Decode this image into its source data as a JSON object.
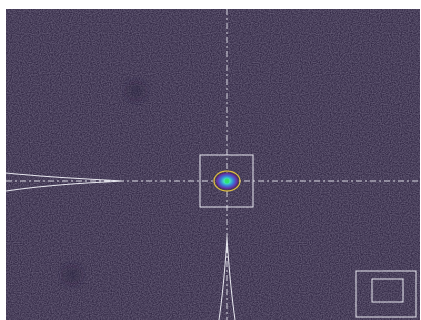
{
  "viewer": {
    "background_color": "#2d2340",
    "overlay_color": "#e8e8f0",
    "ellipse_color": "#e0c040",
    "peak_color": "#30e070",
    "crosshair": "dashed-crosshair",
    "roi": "roi-box",
    "navigator": "overview-navigator"
  }
}
